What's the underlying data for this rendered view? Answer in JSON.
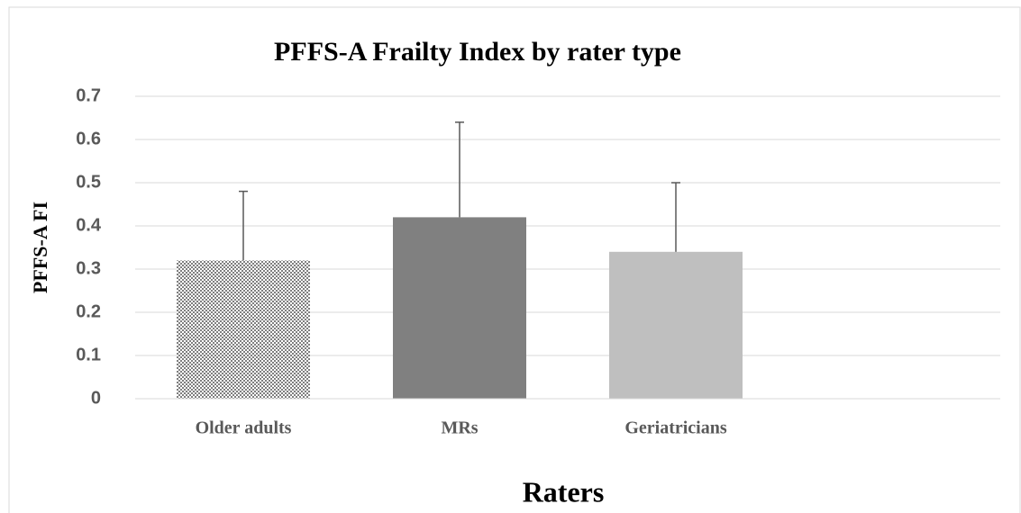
{
  "chart_data": {
    "type": "bar",
    "title": "PFFS-A Frailty Index by rater type",
    "xlabel": "Raters",
    "ylabel": "PFFS-A FI",
    "categories": [
      "Older adults",
      "MRs",
      "Geriatricians",
      null
    ],
    "values": [
      0.32,
      0.42,
      0.34,
      null
    ],
    "errors": [
      0.16,
      0.22,
      0.16,
      null
    ],
    "colors": [
      "#7f7f7f",
      "#808080",
      "#bfbfbf",
      null
    ],
    "fills": [
      "checker",
      "solid",
      "solid",
      null
    ],
    "ylim": [
      0,
      0.7
    ],
    "yticks": [
      0,
      0.1,
      0.2,
      0.3,
      0.4,
      0.5,
      0.6,
      0.7
    ],
    "grid": true
  }
}
